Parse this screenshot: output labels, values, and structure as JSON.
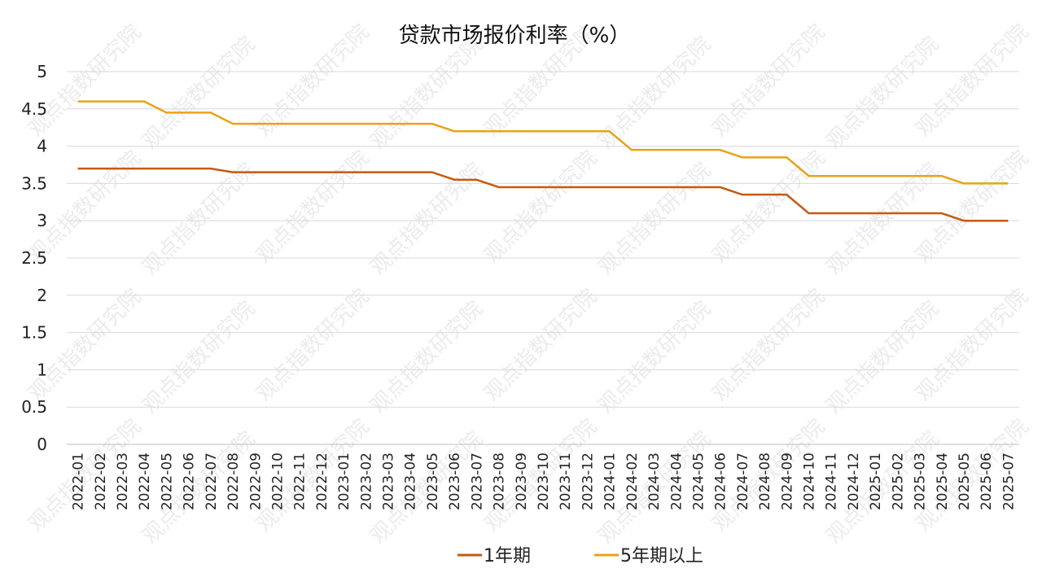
{
  "chart_data": {
    "type": "line",
    "title": "贷款市场报价利率（%）",
    "ylim": [
      0,
      5
    ],
    "y_ticks": [
      "0",
      "0.5",
      "1",
      "1.5",
      "2",
      "2.5",
      "3",
      "3.5",
      "4",
      "4.5",
      "5"
    ],
    "grid": true,
    "legend_position": "bottom",
    "categories": [
      "2022-01",
      "2022-02",
      "2022-03",
      "2022-04",
      "2022-05",
      "2022-06",
      "2022-07",
      "2022-08",
      "2022-09",
      "2022-10",
      "2022-11",
      "2022-12",
      "2023-01",
      "2023-02",
      "2023-03",
      "2023-04",
      "2023-05",
      "2023-06",
      "2023-07",
      "2023-08",
      "2023-09",
      "2023-10",
      "2023-11",
      "2023-12",
      "2024-01",
      "2024-02",
      "2024-03",
      "2024-04",
      "2024-05",
      "2024-06",
      "2024-07",
      "2024-08",
      "2024-09",
      "2024-10",
      "2024-11",
      "2024-12",
      "2025-01",
      "2025-02",
      "2025-03",
      "2025-04",
      "2025-05",
      "2025-06",
      "2025-07"
    ],
    "series": [
      {
        "name": "1年期",
        "color": "#c55a11",
        "values": [
          3.7,
          3.7,
          3.7,
          3.7,
          3.7,
          3.7,
          3.7,
          3.65,
          3.65,
          3.65,
          3.65,
          3.65,
          3.65,
          3.65,
          3.65,
          3.65,
          3.65,
          3.55,
          3.55,
          3.45,
          3.45,
          3.45,
          3.45,
          3.45,
          3.45,
          3.45,
          3.45,
          3.45,
          3.45,
          3.45,
          3.35,
          3.35,
          3.35,
          3.1,
          3.1,
          3.1,
          3.1,
          3.1,
          3.1,
          3.1,
          3.0,
          3.0,
          3.0
        ]
      },
      {
        "name": "5年期以上",
        "color": "#e8a317",
        "values": [
          4.6,
          4.6,
          4.6,
          4.6,
          4.45,
          4.45,
          4.45,
          4.3,
          4.3,
          4.3,
          4.3,
          4.3,
          4.3,
          4.3,
          4.3,
          4.3,
          4.3,
          4.2,
          4.2,
          4.2,
          4.2,
          4.2,
          4.2,
          4.2,
          4.2,
          3.95,
          3.95,
          3.95,
          3.95,
          3.95,
          3.85,
          3.85,
          3.85,
          3.6,
          3.6,
          3.6,
          3.6,
          3.6,
          3.6,
          3.6,
          3.5,
          3.5,
          3.5
        ]
      }
    ],
    "watermark_text": "观点指数研究院"
  }
}
